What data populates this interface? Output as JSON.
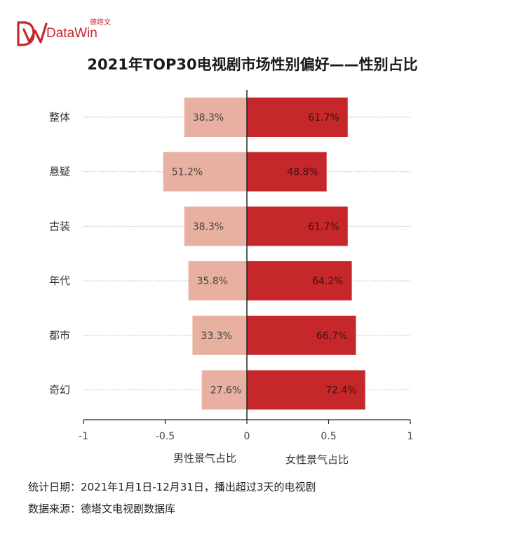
{
  "brand": {
    "name_cn": "德塔文",
    "name_en": "DataWin",
    "logo_color": "#c5272b"
  },
  "footnotes": {
    "stats_date": "统计日期：2021年1月1日-12月31日，播出超过3天的电视剧",
    "data_source": "数据来源：德塔文电视剧数据库"
  },
  "colors": {
    "male": "#e8b0a0",
    "female": "#c5272b",
    "axis": "#222222",
    "gridline": "#bbbbbb"
  },
  "chart_data": {
    "type": "bar",
    "orientation": "horizontal-diverging",
    "title": "2021年TOP30电视剧市场性别偏好——性别占比",
    "categories": [
      "整体",
      "悬疑",
      "古装",
      "年代",
      "都市",
      "奇幻"
    ],
    "series": [
      {
        "name": "男性景气占比",
        "values": [
          0.383,
          0.512,
          0.383,
          0.358,
          0.333,
          0.276
        ],
        "labels": [
          "38.3%",
          "51.2%",
          "38.3%",
          "35.8%",
          "33.3%",
          "27.6%"
        ],
        "direction": "negative"
      },
      {
        "name": "女性景气占比",
        "values": [
          0.617,
          0.488,
          0.617,
          0.642,
          0.667,
          0.724
        ],
        "labels": [
          "61.7%",
          "48.8%",
          "61.7%",
          "64.2%",
          "66.7%",
          "72.4%"
        ],
        "direction": "positive"
      }
    ],
    "xlim": [
      -1,
      1
    ],
    "xticks": [
      -1,
      -0.5,
      0,
      0.5,
      1
    ],
    "xtick_labels": [
      "-1",
      "-0.5",
      "0",
      "0.5",
      "1"
    ],
    "grid": "dotted horizontal lines at each category",
    "legend": "below x-axis as axis labels"
  }
}
